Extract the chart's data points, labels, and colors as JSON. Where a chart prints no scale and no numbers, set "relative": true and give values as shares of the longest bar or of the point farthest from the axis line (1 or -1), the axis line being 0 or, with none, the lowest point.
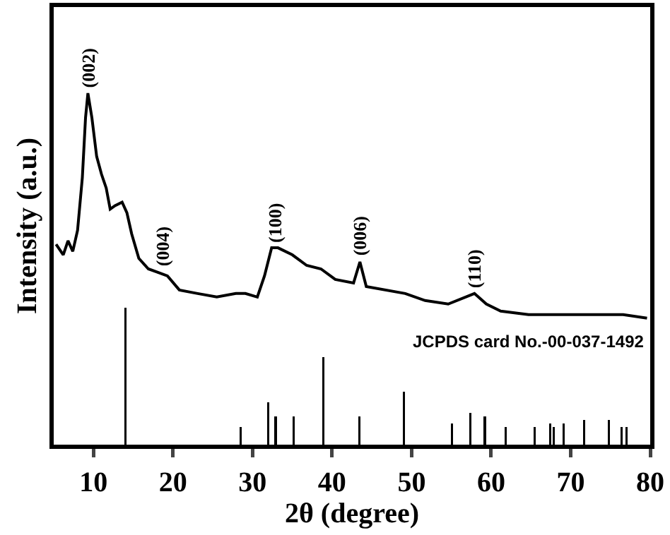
{
  "chart_data": {
    "type": "line",
    "relative": true,
    "xlabel": "2θ (degree)",
    "ylabel": "Intensity (a.u.)",
    "xlim": [
      5,
      80
    ],
    "xticks": [
      10,
      20,
      30,
      40,
      50,
      60,
      70,
      80
    ],
    "grid": false,
    "series": [
      {
        "color": "#000000",
        "x": [
          5.3,
          6.2,
          6.8,
          7.4,
          8.0,
          8.6,
          9.0,
          9.3,
          9.8,
          10.4,
          11.0,
          11.6,
          12.1,
          12.7,
          13.6,
          14.2,
          14.8,
          15.7,
          16.9,
          18.1,
          19.3,
          20.8,
          23.1,
          25.5,
          27.9,
          29.1,
          30.6,
          31.5,
          32.4,
          33.2,
          35.0,
          36.8,
          38.6,
          40.4,
          42.7,
          43.5,
          44.3,
          49.2,
          51.7,
          54.6,
          57.9,
          59.4,
          61.2,
          64.7,
          70.7,
          76.6,
          79.6
        ],
        "values": [
          0.57,
          0.54,
          0.58,
          0.55,
          0.61,
          0.76,
          0.93,
          1.0,
          0.93,
          0.82,
          0.77,
          0.73,
          0.67,
          0.68,
          0.69,
          0.66,
          0.6,
          0.53,
          0.5,
          0.49,
          0.48,
          0.44,
          0.43,
          0.42,
          0.43,
          0.43,
          0.42,
          0.48,
          0.56,
          0.56,
          0.54,
          0.51,
          0.5,
          0.47,
          0.46,
          0.52,
          0.45,
          0.43,
          0.41,
          0.4,
          0.43,
          0.4,
          0.38,
          0.37,
          0.37,
          0.37,
          0.36
        ]
      },
      {
        "type": "bar",
        "color": "#000000",
        "x": [
          14.0,
          28.5,
          32.0,
          32.9,
          35.2,
          38.9,
          43.4,
          49.0,
          55.1,
          57.4,
          59.2,
          61.8,
          65.5,
          67.4,
          67.9,
          69.1,
          71.7,
          74.8,
          76.4,
          77.0
        ],
        "values": [
          0.39,
          0.05,
          0.12,
          0.08,
          0.08,
          0.25,
          0.08,
          0.15,
          0.06,
          0.09,
          0.08,
          0.05,
          0.05,
          0.06,
          0.05,
          0.06,
          0.07,
          0.07,
          0.05,
          0.05
        ]
      }
    ],
    "annotations": [
      {
        "text": "(002)",
        "x": 9.3,
        "y": 1.0
      },
      {
        "text": "(004)",
        "x": 18.8,
        "y": 0.49
      },
      {
        "text": "(100)",
        "x": 32.8,
        "y": 0.56
      },
      {
        "text": "(006)",
        "x": 43.5,
        "y": 0.52
      },
      {
        "text": "(110)",
        "x": 57.9,
        "y": 0.43
      },
      "JCPDS card No.-00-037-1492"
    ]
  }
}
